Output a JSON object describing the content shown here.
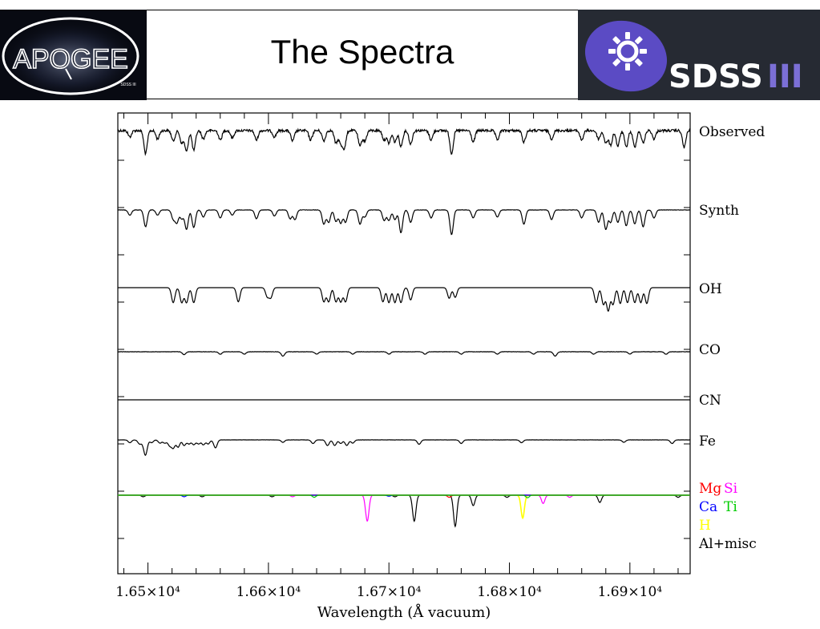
{
  "header": {
    "title": "The Spectra",
    "left_logo_text": "APOGEE",
    "left_logo_subtext": "SDSS III",
    "right_logo_text": "SDSS",
    "right_logo_suffix": "III"
  },
  "colors": {
    "apogee_bg": "#080a12",
    "sdss_bg": "#262a33",
    "sdss_purple": "#5b4bc4",
    "sdss_bars": "#7b6fd6",
    "spectrum": "#000000",
    "Mg": "#ff0000",
    "Si": "#ff00ff",
    "Ca": "#0000ff",
    "Ti": "#00cc00",
    "H": "#ffff00",
    "Al+misc": "#000000"
  },
  "chart_data": {
    "type": "line",
    "title": "",
    "xlabel": "Wavelength (Å vacuum)",
    "ylabel": "",
    "xlim": [
      16475,
      16950
    ],
    "xticks": [
      {
        "value": 16500,
        "label": "1.65×10⁴"
      },
      {
        "value": 16600,
        "label": "1.66×10⁴"
      },
      {
        "value": 16700,
        "label": "1.67×10⁴"
      },
      {
        "value": 16800,
        "label": "1.68×10⁴"
      },
      {
        "value": 16900,
        "label": "1.69×10⁴"
      }
    ],
    "series": [
      {
        "name": "Observed",
        "color": "#000000",
        "noise": 0.3,
        "lines": [
          [
            16485,
            0.6
          ],
          [
            16498,
            2.2
          ],
          [
            16508,
            0.8
          ],
          [
            16521,
            1.0
          ],
          [
            16528,
            1.2
          ],
          [
            16532,
            2.0
          ],
          [
            16538,
            1.9
          ],
          [
            16546,
            0.8
          ],
          [
            16560,
            0.9
          ],
          [
            16570,
            0.7
          ],
          [
            16590,
            0.9
          ],
          [
            16605,
            0.6
          ],
          [
            16620,
            1.0
          ],
          [
            16635,
            0.9
          ],
          [
            16646,
            1.0
          ],
          [
            16656,
            1.2
          ],
          [
            16660,
            1.2
          ],
          [
            16663,
            1.6
          ],
          [
            16676,
            1.5
          ],
          [
            16680,
            1.0
          ],
          [
            16696,
            0.9
          ],
          [
            16700,
            1.2
          ],
          [
            16705,
            1.1
          ],
          [
            16710,
            1.5
          ],
          [
            16718,
            1.3
          ],
          [
            16735,
            0.9
          ],
          [
            16752,
            2.2
          ],
          [
            16770,
            1.1
          ],
          [
            16790,
            0.9
          ],
          [
            16812,
            1.1
          ],
          [
            16835,
            0.8
          ],
          [
            16860,
            0.9
          ],
          [
            16874,
            0.8
          ],
          [
            16880,
            1.2
          ],
          [
            16884,
            1.4
          ],
          [
            16890,
            1.5
          ],
          [
            16897,
            1.6
          ],
          [
            16904,
            1.6
          ],
          [
            16911,
            1.2
          ],
          [
            16920,
            0.8
          ],
          [
            16945,
            1.6
          ]
        ]
      },
      {
        "name": "Synth",
        "color": "#000000",
        "noise": 0.05,
        "lines": [
          [
            16485,
            0.6
          ],
          [
            16498,
            1.9
          ],
          [
            16508,
            0.6
          ],
          [
            16521,
            1.0
          ],
          [
            16524,
            1.4
          ],
          [
            16528,
            1.0
          ],
          [
            16532,
            2.2
          ],
          [
            16538,
            2.0
          ],
          [
            16546,
            0.8
          ],
          [
            16560,
            0.9
          ],
          [
            16570,
            0.6
          ],
          [
            16590,
            1.0
          ],
          [
            16605,
            0.7
          ],
          [
            16618,
            1.0
          ],
          [
            16622,
            1.1
          ],
          [
            16646,
            1.6
          ],
          [
            16650,
            1.4
          ],
          [
            16656,
            1.3
          ],
          [
            16660,
            1.5
          ],
          [
            16664,
            1.4
          ],
          [
            16676,
            1.6
          ],
          [
            16680,
            0.8
          ],
          [
            16696,
            1.2
          ],
          [
            16700,
            1.2
          ],
          [
            16705,
            1.1
          ],
          [
            16710,
            2.6
          ],
          [
            16718,
            1.4
          ],
          [
            16735,
            0.9
          ],
          [
            16752,
            2.8
          ],
          [
            16770,
            0.9
          ],
          [
            16790,
            0.8
          ],
          [
            16812,
            1.6
          ],
          [
            16835,
            1.1
          ],
          [
            16860,
            0.9
          ],
          [
            16874,
            1.4
          ],
          [
            16880,
            2.2
          ],
          [
            16884,
            1.4
          ],
          [
            16890,
            1.4
          ],
          [
            16897,
            1.8
          ],
          [
            16904,
            1.6
          ],
          [
            16911,
            1.9
          ],
          [
            16920,
            0.9
          ]
        ]
      },
      {
        "name": "OH",
        "color": "#000000",
        "noise": 0.0,
        "lines": [
          [
            16521,
            1.7
          ],
          [
            16528,
            1.7
          ],
          [
            16532,
            1.7
          ],
          [
            16538,
            1.7
          ],
          [
            16575,
            1.6
          ],
          [
            16599,
            1.0
          ],
          [
            16602,
            1.1
          ],
          [
            16646,
            1.6
          ],
          [
            16650,
            1.6
          ],
          [
            16656,
            1.6
          ],
          [
            16660,
            1.6
          ],
          [
            16664,
            1.6
          ],
          [
            16695,
            1.6
          ],
          [
            16700,
            1.7
          ],
          [
            16705,
            1.7
          ],
          [
            16710,
            1.7
          ],
          [
            16718,
            1.4
          ],
          [
            16750,
            1.2
          ],
          [
            16755,
            1.1
          ],
          [
            16872,
            1.7
          ],
          [
            16878,
            1.9
          ],
          [
            16882,
            2.6
          ],
          [
            16886,
            1.9
          ],
          [
            16892,
            1.8
          ],
          [
            16898,
            1.7
          ],
          [
            16904,
            1.7
          ],
          [
            16909,
            1.7
          ],
          [
            16914,
            1.8
          ]
        ]
      },
      {
        "name": "CO",
        "color": "#000000",
        "noise": 0.04,
        "lines": [
          [
            16530,
            0.35
          ],
          [
            16560,
            0.3
          ],
          [
            16580,
            0.3
          ],
          [
            16612,
            0.55
          ],
          [
            16640,
            0.3
          ],
          [
            16670,
            0.3
          ],
          [
            16700,
            0.3
          ],
          [
            16730,
            0.3
          ],
          [
            16760,
            0.3
          ],
          [
            16790,
            0.3
          ],
          [
            16820,
            0.3
          ],
          [
            16838,
            0.55
          ],
          [
            16870,
            0.3
          ],
          [
            16900,
            0.3
          ],
          [
            16930,
            0.3
          ]
        ]
      },
      {
        "name": "CN",
        "color": "#000000",
        "noise": 0.0,
        "lines": []
      },
      {
        "name": "Fe",
        "color": "#000000",
        "noise": 0.02,
        "lines": [
          [
            16485,
            0.35
          ],
          [
            16493,
            0.5
          ],
          [
            16496,
            0.3
          ],
          [
            16498,
            1.8
          ],
          [
            16503,
            0.35
          ],
          [
            16510,
            0.4
          ],
          [
            16514,
            0.4
          ],
          [
            16518,
            0.7
          ],
          [
            16521,
            1.0
          ],
          [
            16525,
            0.9
          ],
          [
            16530,
            0.7
          ],
          [
            16534,
            0.5
          ],
          [
            16538,
            0.6
          ],
          [
            16542,
            0.5
          ],
          [
            16546,
            0.6
          ],
          [
            16550,
            0.5
          ],
          [
            16556,
            1.0
          ],
          [
            16612,
            0.3
          ],
          [
            16637,
            0.45
          ],
          [
            16649,
            0.7
          ],
          [
            16655,
            0.7
          ],
          [
            16660,
            0.45
          ],
          [
            16665,
            0.7
          ],
          [
            16670,
            0.4
          ],
          [
            16725,
            0.55
          ],
          [
            16760,
            0.45
          ],
          [
            16810,
            0.35
          ],
          [
            16895,
            0.3
          ],
          [
            16935,
            0.45
          ]
        ]
      },
      {
        "name": "Al+misc",
        "color": "#000000",
        "noise": 0.0,
        "lines": [
          [
            16496,
            0.15
          ],
          [
            16545,
            0.15
          ],
          [
            16603,
            0.15
          ],
          [
            16705,
            0.15
          ],
          [
            16721,
            2.5
          ],
          [
            16755,
            3.0
          ],
          [
            16770,
            1.0
          ],
          [
            16798,
            0.2
          ],
          [
            16875,
            0.7
          ],
          [
            16940,
            0.2
          ]
        ]
      },
      {
        "name": "Si",
        "color": "#ff00ff",
        "noise": 0.0,
        "lines": [
          [
            16620,
            0.15
          ],
          [
            16682,
            2.5
          ],
          [
            16828,
            0.8
          ],
          [
            16850,
            0.2
          ]
        ]
      },
      {
        "name": "H",
        "color": "#ffff00",
        "noise": 0.0,
        "lines": [
          [
            16811,
            2.2
          ]
        ]
      },
      {
        "name": "Mg",
        "color": "#ff0000",
        "noise": 0.0,
        "lines": [
          [
            16750,
            0.2
          ]
        ]
      },
      {
        "name": "Ca",
        "color": "#0000ff",
        "noise": 0.0,
        "lines": [
          [
            16530,
            0.15
          ],
          [
            16700,
            0.1
          ]
        ]
      },
      {
        "name": "Ti",
        "color": "#00cc00",
        "noise": 0.0,
        "lines": [
          [
            16638,
            0.2
          ],
          [
            16815,
            0.25
          ]
        ]
      }
    ],
    "labels": {
      "observed": "Observed",
      "synth": "Synth",
      "oh": "OH",
      "co": "CO",
      "cn": "CN",
      "fe": "Fe",
      "mg": "Mg",
      "si": "Si",
      "ca": "Ca",
      "ti": "Ti",
      "h": "H",
      "al": "Al+misc"
    },
    "grid": false
  }
}
